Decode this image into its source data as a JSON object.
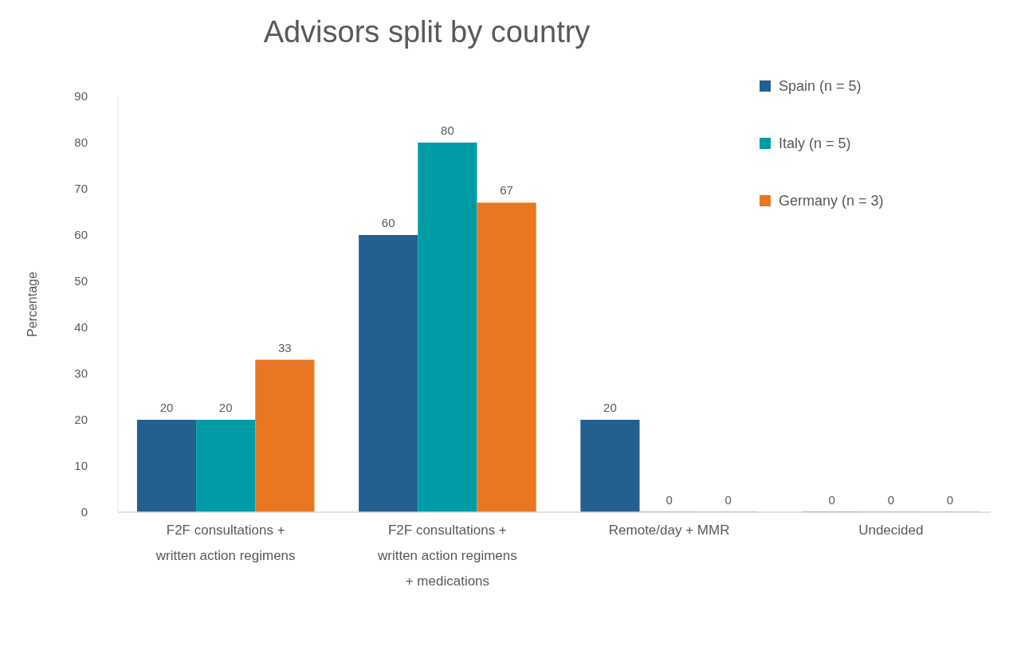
{
  "chart_data": {
    "type": "bar",
    "title": "Advisors split by country",
    "ylabel": "Percentage",
    "categories": [
      "F2F consultations + written action regimens",
      "F2F consultations + written action regimens + medications",
      "Remote/day + MMR",
      "Undecided"
    ],
    "series": [
      {
        "name": "Spain (n = 5)",
        "color": "#23608f",
        "values": [
          20,
          60,
          20,
          0
        ]
      },
      {
        "name": "Italy (n = 5)",
        "color": "#009ca6",
        "values": [
          20,
          80,
          0,
          0
        ]
      },
      {
        "name": "Germany (n = 3)",
        "color": "#e87722",
        "values": [
          33,
          67,
          0,
          0
        ]
      }
    ],
    "ylim": [
      0,
      90
    ],
    "yticks": [
      0,
      10,
      20,
      30,
      40,
      50,
      60,
      70,
      80,
      90
    ],
    "data_labels": true,
    "legend": "top right",
    "grid": false
  }
}
